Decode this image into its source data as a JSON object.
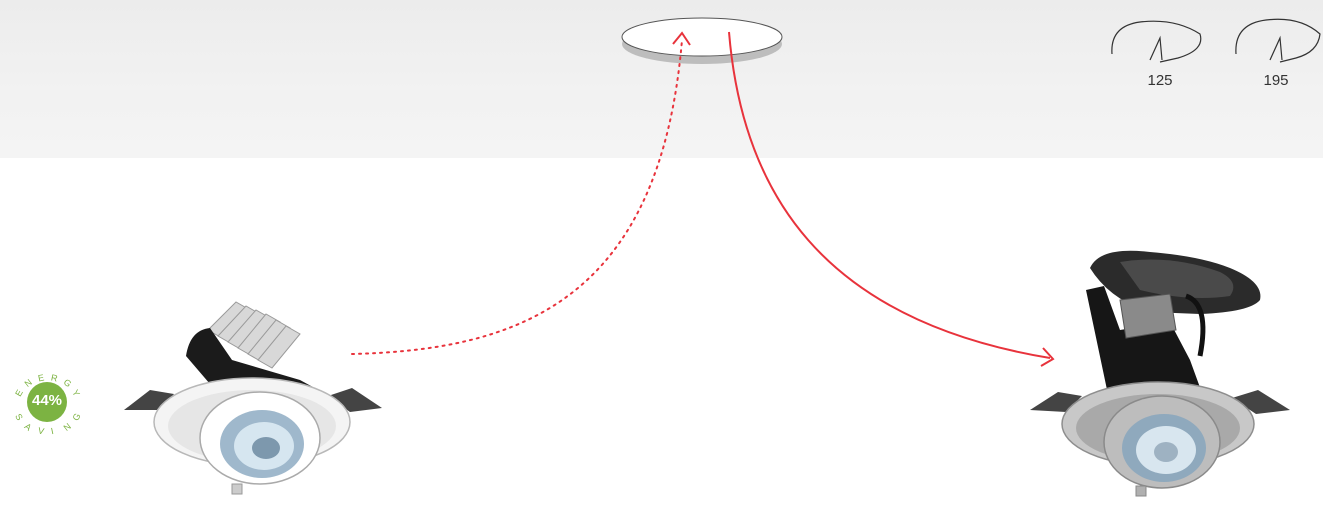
{
  "colors": {
    "accent": "#e8333c",
    "badge_green": "#7cb342",
    "ceiling": "#efefef"
  },
  "sizes": {
    "small": "125",
    "large": "195"
  },
  "badge": {
    "percent": "44%",
    "top_letters": [
      "E",
      "N",
      "E",
      "R",
      "G",
      "Y"
    ],
    "bottom_letters": [
      "S",
      "A",
      "V",
      "I",
      "N",
      "G"
    ]
  },
  "icons": {
    "ceiling_hole": "ceiling-cutout-ellipse",
    "size_small": "cutout-size-icon",
    "size_large": "cutout-size-icon",
    "led_lamp": "led-recessed-downlight",
    "metal_halide_lamp": "halide-recessed-downlight"
  }
}
